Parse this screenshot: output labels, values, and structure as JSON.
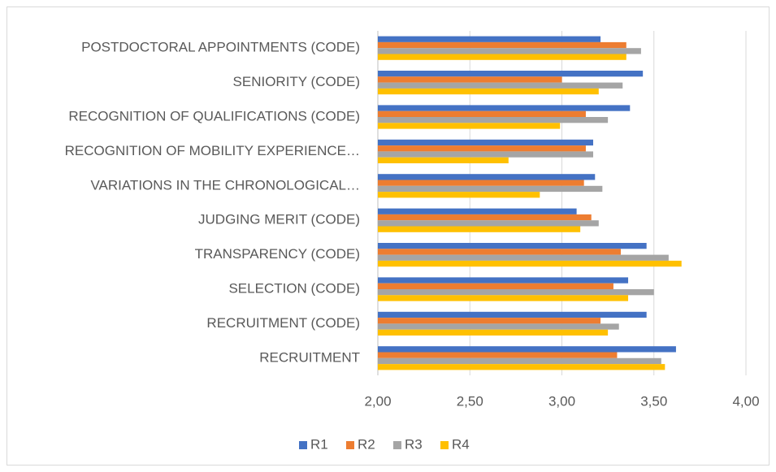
{
  "chart_data": {
    "type": "hbar",
    "categories": [
      "POSTDOCTORAL APPOINTMENTS (CODE)",
      "SENIORITY (CODE)",
      "RECOGNITION OF QUALIFICATIONS (CODE)",
      "RECOGNITION OF MOBILITY EXPERIENCE…",
      "VARIATIONS IN THE CHRONOLOGICAL…",
      "JUDGING MERIT (CODE)",
      "TRANSPARENCY (CODE)",
      "SELECTION (CODE)",
      "RECRUITMENT (CODE)",
      "RECRUITMENT"
    ],
    "series": [
      {
        "name": "R1",
        "color": "#4472c4",
        "values": [
          3.21,
          3.44,
          3.37,
          3.17,
          3.18,
          3.08,
          3.46,
          3.36,
          3.46,
          3.62
        ]
      },
      {
        "name": "R2",
        "color": "#ed7d31",
        "values": [
          3.35,
          3.0,
          3.13,
          3.13,
          3.12,
          3.16,
          3.32,
          3.28,
          3.21,
          3.3
        ]
      },
      {
        "name": "R3",
        "color": "#a5a5a5",
        "values": [
          3.43,
          3.33,
          3.25,
          3.17,
          3.22,
          3.2,
          3.58,
          3.5,
          3.31,
          3.54
        ]
      },
      {
        "name": "R4",
        "color": "#ffc000",
        "values": [
          3.35,
          3.2,
          2.99,
          2.71,
          2.88,
          3.1,
          3.65,
          3.36,
          3.25,
          3.56
        ]
      }
    ],
    "xlim": [
      2,
      4
    ],
    "xticks": [
      {
        "value": 2,
        "label": "2,00"
      },
      {
        "value": 2.5,
        "label": "2,50"
      },
      {
        "value": 3,
        "label": "3,00"
      },
      {
        "value": 3.5,
        "label": "3,50"
      },
      {
        "value": 4,
        "label": "4,00"
      }
    ],
    "grid": true,
    "legend": "bottom"
  }
}
